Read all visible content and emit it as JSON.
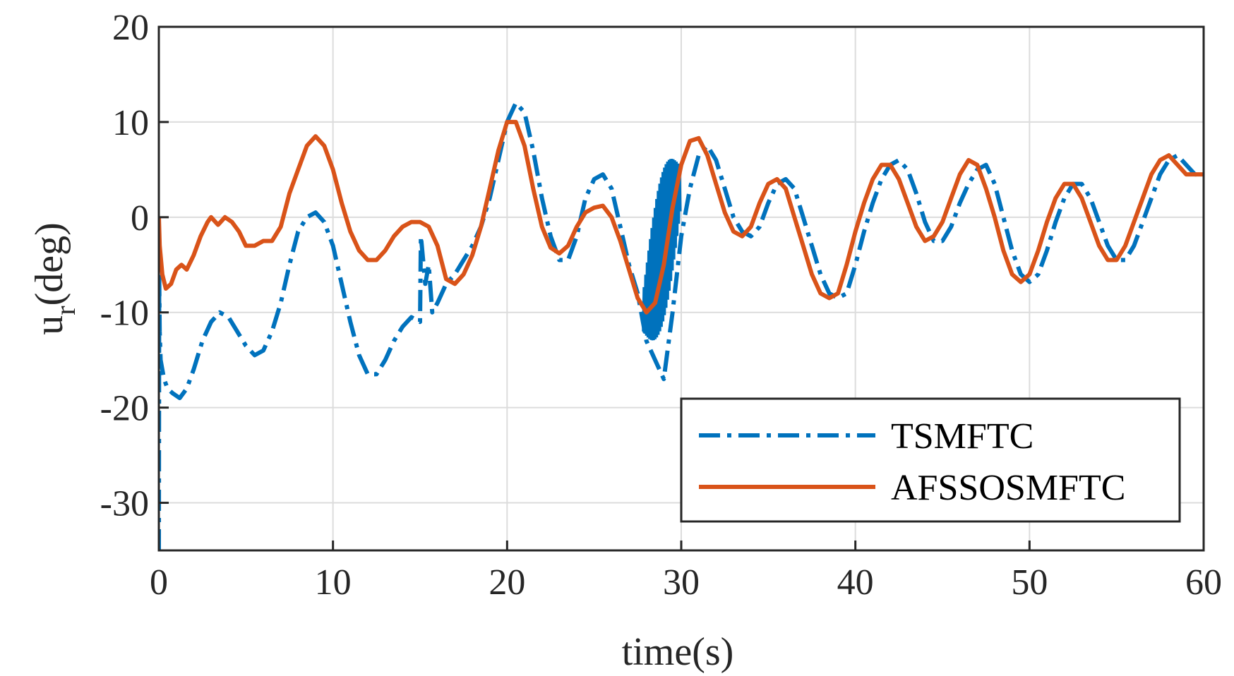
{
  "colors": {
    "tsmftc": "#0072BD",
    "afssosmftc": "#D95319",
    "grid": "#dcdcdc",
    "axis": "#262626",
    "background": "#ffffff"
  },
  "chart_data": {
    "type": "line",
    "title": "",
    "xlabel": "time(s)",
    "ylabel_main": "u",
    "ylabel_sub": "r",
    "ylabel_tail": "(deg)",
    "xlim": [
      0,
      60
    ],
    "ylim": [
      -35,
      20
    ],
    "xticks": [
      0,
      10,
      20,
      30,
      40,
      50,
      60
    ],
    "yticks": [
      -30,
      -20,
      -10,
      0,
      10,
      20
    ],
    "xtick_labels": [
      "0",
      "10",
      "20",
      "30",
      "40",
      "50",
      "60"
    ],
    "ytick_labels": [
      "-30",
      "-20",
      "-10",
      "0",
      "10",
      "20"
    ],
    "grid": true,
    "legend_position": "bottom-right",
    "series": [
      {
        "name": "TSMFTC",
        "style": "dash-dot",
        "color": "#0072BD",
        "x": [
          0,
          0.02,
          0.05,
          0.1,
          0.2,
          0.3,
          0.5,
          0.8,
          1.2,
          1.6,
          2.0,
          2.5,
          3.0,
          3.5,
          4.0,
          4.5,
          5.0,
          5.5,
          6.0,
          6.5,
          7.0,
          7.5,
          8.0,
          8.5,
          9.0,
          9.5,
          10.0,
          10.5,
          11.0,
          11.5,
          12.0,
          12.5,
          13.0,
          13.5,
          14.0,
          14.5,
          15.0,
          15.05,
          15.1,
          15.3,
          15.5,
          15.7,
          16.0,
          16.5,
          17.0,
          17.5,
          18.0,
          18.5,
          19.0,
          19.5,
          20.0,
          20.5,
          21.0,
          21.5,
          22.0,
          22.5,
          23.0,
          23.5,
          24.0,
          24.5,
          25.0,
          25.5,
          26.0,
          26.5,
          27.0,
          27.5,
          28.0,
          28.5,
          29.0,
          29.5,
          30.0,
          30.5,
          31.0,
          31.5,
          32.0,
          32.5,
          33.0,
          33.5,
          34.0,
          34.5,
          35.0,
          35.5,
          36.0,
          36.5,
          37.0,
          37.5,
          38.0,
          38.5,
          39.0,
          39.5,
          40.0,
          40.5,
          41.0,
          41.5,
          42.0,
          42.5,
          43.0,
          43.5,
          44.0,
          44.5,
          45.0,
          45.5,
          46.0,
          46.5,
          47.0,
          47.5,
          48.0,
          48.5,
          49.0,
          49.5,
          50.0,
          50.5,
          51.0,
          51.5,
          52.0,
          52.5,
          53.0,
          53.5,
          54.0,
          54.5,
          55.0,
          55.5,
          56.0,
          56.5,
          57.0,
          57.5,
          58.0,
          58.5,
          59.0,
          59.5,
          60.0
        ],
        "y": [
          -35,
          -6,
          -12,
          -15,
          -16,
          -17,
          -18,
          -18.5,
          -19,
          -18,
          -16,
          -13,
          -11,
          -10,
          -10.5,
          -12,
          -13.5,
          -14.5,
          -14,
          -12,
          -9,
          -5,
          -1.5,
          0,
          0.5,
          -0.5,
          -3,
          -7,
          -11,
          -14.5,
          -16.5,
          -16.5,
          -15,
          -13,
          -11.5,
          -10.5,
          -11,
          -2,
          -3,
          -7,
          -5,
          -10,
          -9,
          -7,
          -6,
          -4.5,
          -3,
          -1,
          2,
          6,
          10,
          12,
          11,
          7,
          2,
          -2,
          -4.5,
          -4.5,
          -2,
          2,
          4,
          4.5,
          3,
          -1,
          -5,
          -8,
          -13,
          -15,
          -17,
          -10,
          -2,
          3,
          6.5,
          7.5,
          6,
          3,
          0,
          -1.5,
          -2,
          -1,
          1.5,
          3.5,
          4,
          3,
          0,
          -3,
          -6,
          -8,
          -8.5,
          -8,
          -5,
          -1.5,
          1.5,
          4,
          5.5,
          6,
          5,
          2.5,
          -0.5,
          -2.5,
          -2.5,
          -1,
          1.5,
          3.5,
          5,
          5.5,
          3.5,
          0,
          -3.5,
          -6,
          -6.8,
          -6,
          -3.5,
          -0.5,
          2,
          3.5,
          3.5,
          2,
          -0.5,
          -3,
          -4.5,
          -4.5,
          -3,
          -0.5,
          2,
          4.5,
          6,
          6.5,
          5.5,
          4.5,
          4.5
        ]
      },
      {
        "name": "AFSSOSMFTC",
        "style": "solid",
        "color": "#D95319",
        "x": [
          0,
          0.05,
          0.2,
          0.4,
          0.7,
          1.0,
          1.3,
          1.6,
          2.0,
          2.4,
          2.8,
          3.0,
          3.4,
          3.8,
          4.2,
          4.6,
          5.0,
          5.5,
          6.0,
          6.5,
          7.0,
          7.5,
          8.0,
          8.5,
          9.0,
          9.5,
          10.0,
          10.5,
          11.0,
          11.5,
          12.0,
          12.5,
          13.0,
          13.5,
          14.0,
          14.5,
          15.0,
          15.5,
          16.0,
          16.5,
          17.0,
          17.5,
          18.0,
          18.5,
          19.0,
          19.5,
          20.0,
          20.5,
          21.0,
          21.5,
          22.0,
          22.5,
          23.0,
          23.5,
          24.0,
          24.5,
          25.0,
          25.5,
          26.0,
          26.5,
          27.0,
          27.5,
          28.0,
          28.5,
          29.0,
          29.5,
          30.0,
          30.5,
          31.0,
          31.5,
          32.0,
          32.5,
          33.0,
          33.5,
          34.0,
          34.5,
          35.0,
          35.5,
          36.0,
          36.5,
          37.0,
          37.5,
          38.0,
          38.5,
          39.0,
          39.5,
          40.0,
          40.5,
          41.0,
          41.5,
          42.0,
          42.5,
          43.0,
          43.5,
          44.0,
          44.5,
          45.0,
          45.5,
          46.0,
          46.5,
          47.0,
          47.5,
          48.0,
          48.5,
          49.0,
          49.5,
          50.0,
          50.5,
          51.0,
          51.5,
          52.0,
          52.5,
          53.0,
          53.5,
          54.0,
          54.5,
          55.0,
          55.5,
          56.0,
          56.5,
          57.0,
          57.5,
          58.0,
          58.5,
          59.0,
          59.5,
          60.0
        ],
        "y": [
          0,
          -3,
          -6,
          -7.5,
          -7,
          -5.5,
          -5,
          -5.5,
          -4,
          -2,
          -0.5,
          0,
          -0.8,
          0,
          -0.5,
          -1.5,
          -3,
          -3,
          -2.5,
          -2.5,
          -1,
          2.5,
          5,
          7.5,
          8.5,
          7.5,
          5,
          1.5,
          -1.5,
          -3.5,
          -4.5,
          -4.5,
          -3.5,
          -2,
          -1,
          -0.5,
          -0.5,
          -1,
          -3,
          -6.5,
          -7,
          -6,
          -4,
          -1,
          3,
          7,
          10,
          10,
          7.5,
          3,
          -1,
          -3.2,
          -3.8,
          -3,
          -1,
          0.5,
          1,
          1.2,
          0,
          -2.5,
          -5.5,
          -8.5,
          -10,
          -9,
          -5,
          1,
          5.5,
          8,
          8.3,
          6.5,
          3.5,
          0.5,
          -1.5,
          -2,
          -1,
          1.5,
          3.5,
          4,
          3,
          0,
          -3,
          -6,
          -8,
          -8.5,
          -8,
          -5,
          -1.5,
          1.5,
          4,
          5.5,
          5.5,
          4,
          1.5,
          -1,
          -2.5,
          -2,
          -0.5,
          2,
          4.5,
          6,
          5.5,
          3,
          0,
          -3.5,
          -6,
          -6.8,
          -6,
          -3.5,
          -0.5,
          2,
          3.5,
          3.5,
          2,
          -0.5,
          -3,
          -4.5,
          -4.5,
          -3,
          -0.5,
          2,
          4.5,
          6,
          6.5,
          5.5,
          4.5,
          4.5,
          4.5
        ]
      }
    ],
    "legend": [
      "TSMFTC",
      "AFSSOSMFTC"
    ]
  }
}
